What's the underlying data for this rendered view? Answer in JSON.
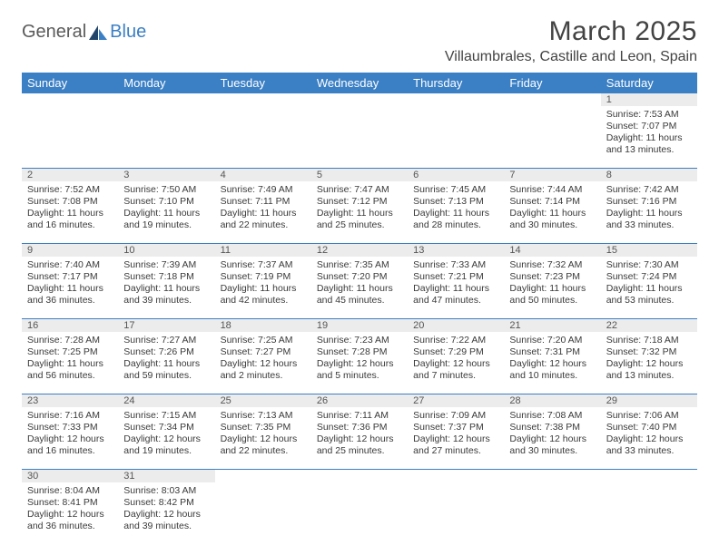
{
  "logo": {
    "text1": "General",
    "text2": "Blue"
  },
  "title": "March 2025",
  "location": "Villaumbrales, Castille and Leon, Spain",
  "colors": {
    "header_bg": "#3b7fc4",
    "header_text": "#ffffff",
    "daynum_bg": "#ececec",
    "border": "#3b7fc4",
    "text": "#3a3a3a"
  },
  "dayNames": [
    "Sunday",
    "Monday",
    "Tuesday",
    "Wednesday",
    "Thursday",
    "Friday",
    "Saturday"
  ],
  "weeks": [
    [
      null,
      null,
      null,
      null,
      null,
      null,
      {
        "n": "1",
        "sr": "Sunrise: 7:53 AM",
        "ss": "Sunset: 7:07 PM",
        "dl": "Daylight: 11 hours and 13 minutes."
      }
    ],
    [
      {
        "n": "2",
        "sr": "Sunrise: 7:52 AM",
        "ss": "Sunset: 7:08 PM",
        "dl": "Daylight: 11 hours and 16 minutes."
      },
      {
        "n": "3",
        "sr": "Sunrise: 7:50 AM",
        "ss": "Sunset: 7:10 PM",
        "dl": "Daylight: 11 hours and 19 minutes."
      },
      {
        "n": "4",
        "sr": "Sunrise: 7:49 AM",
        "ss": "Sunset: 7:11 PM",
        "dl": "Daylight: 11 hours and 22 minutes."
      },
      {
        "n": "5",
        "sr": "Sunrise: 7:47 AM",
        "ss": "Sunset: 7:12 PM",
        "dl": "Daylight: 11 hours and 25 minutes."
      },
      {
        "n": "6",
        "sr": "Sunrise: 7:45 AM",
        "ss": "Sunset: 7:13 PM",
        "dl": "Daylight: 11 hours and 28 minutes."
      },
      {
        "n": "7",
        "sr": "Sunrise: 7:44 AM",
        "ss": "Sunset: 7:14 PM",
        "dl": "Daylight: 11 hours and 30 minutes."
      },
      {
        "n": "8",
        "sr": "Sunrise: 7:42 AM",
        "ss": "Sunset: 7:16 PM",
        "dl": "Daylight: 11 hours and 33 minutes."
      }
    ],
    [
      {
        "n": "9",
        "sr": "Sunrise: 7:40 AM",
        "ss": "Sunset: 7:17 PM",
        "dl": "Daylight: 11 hours and 36 minutes."
      },
      {
        "n": "10",
        "sr": "Sunrise: 7:39 AM",
        "ss": "Sunset: 7:18 PM",
        "dl": "Daylight: 11 hours and 39 minutes."
      },
      {
        "n": "11",
        "sr": "Sunrise: 7:37 AM",
        "ss": "Sunset: 7:19 PM",
        "dl": "Daylight: 11 hours and 42 minutes."
      },
      {
        "n": "12",
        "sr": "Sunrise: 7:35 AM",
        "ss": "Sunset: 7:20 PM",
        "dl": "Daylight: 11 hours and 45 minutes."
      },
      {
        "n": "13",
        "sr": "Sunrise: 7:33 AM",
        "ss": "Sunset: 7:21 PM",
        "dl": "Daylight: 11 hours and 47 minutes."
      },
      {
        "n": "14",
        "sr": "Sunrise: 7:32 AM",
        "ss": "Sunset: 7:23 PM",
        "dl": "Daylight: 11 hours and 50 minutes."
      },
      {
        "n": "15",
        "sr": "Sunrise: 7:30 AM",
        "ss": "Sunset: 7:24 PM",
        "dl": "Daylight: 11 hours and 53 minutes."
      }
    ],
    [
      {
        "n": "16",
        "sr": "Sunrise: 7:28 AM",
        "ss": "Sunset: 7:25 PM",
        "dl": "Daylight: 11 hours and 56 minutes."
      },
      {
        "n": "17",
        "sr": "Sunrise: 7:27 AM",
        "ss": "Sunset: 7:26 PM",
        "dl": "Daylight: 11 hours and 59 minutes."
      },
      {
        "n": "18",
        "sr": "Sunrise: 7:25 AM",
        "ss": "Sunset: 7:27 PM",
        "dl": "Daylight: 12 hours and 2 minutes."
      },
      {
        "n": "19",
        "sr": "Sunrise: 7:23 AM",
        "ss": "Sunset: 7:28 PM",
        "dl": "Daylight: 12 hours and 5 minutes."
      },
      {
        "n": "20",
        "sr": "Sunrise: 7:22 AM",
        "ss": "Sunset: 7:29 PM",
        "dl": "Daylight: 12 hours and 7 minutes."
      },
      {
        "n": "21",
        "sr": "Sunrise: 7:20 AM",
        "ss": "Sunset: 7:31 PM",
        "dl": "Daylight: 12 hours and 10 minutes."
      },
      {
        "n": "22",
        "sr": "Sunrise: 7:18 AM",
        "ss": "Sunset: 7:32 PM",
        "dl": "Daylight: 12 hours and 13 minutes."
      }
    ],
    [
      {
        "n": "23",
        "sr": "Sunrise: 7:16 AM",
        "ss": "Sunset: 7:33 PM",
        "dl": "Daylight: 12 hours and 16 minutes."
      },
      {
        "n": "24",
        "sr": "Sunrise: 7:15 AM",
        "ss": "Sunset: 7:34 PM",
        "dl": "Daylight: 12 hours and 19 minutes."
      },
      {
        "n": "25",
        "sr": "Sunrise: 7:13 AM",
        "ss": "Sunset: 7:35 PM",
        "dl": "Daylight: 12 hours and 22 minutes."
      },
      {
        "n": "26",
        "sr": "Sunrise: 7:11 AM",
        "ss": "Sunset: 7:36 PM",
        "dl": "Daylight: 12 hours and 25 minutes."
      },
      {
        "n": "27",
        "sr": "Sunrise: 7:09 AM",
        "ss": "Sunset: 7:37 PM",
        "dl": "Daylight: 12 hours and 27 minutes."
      },
      {
        "n": "28",
        "sr": "Sunrise: 7:08 AM",
        "ss": "Sunset: 7:38 PM",
        "dl": "Daylight: 12 hours and 30 minutes."
      },
      {
        "n": "29",
        "sr": "Sunrise: 7:06 AM",
        "ss": "Sunset: 7:40 PM",
        "dl": "Daylight: 12 hours and 33 minutes."
      }
    ],
    [
      {
        "n": "30",
        "sr": "Sunrise: 8:04 AM",
        "ss": "Sunset: 8:41 PM",
        "dl": "Daylight: 12 hours and 36 minutes."
      },
      {
        "n": "31",
        "sr": "Sunrise: 8:03 AM",
        "ss": "Sunset: 8:42 PM",
        "dl": "Daylight: 12 hours and 39 minutes."
      },
      null,
      null,
      null,
      null,
      null
    ]
  ]
}
